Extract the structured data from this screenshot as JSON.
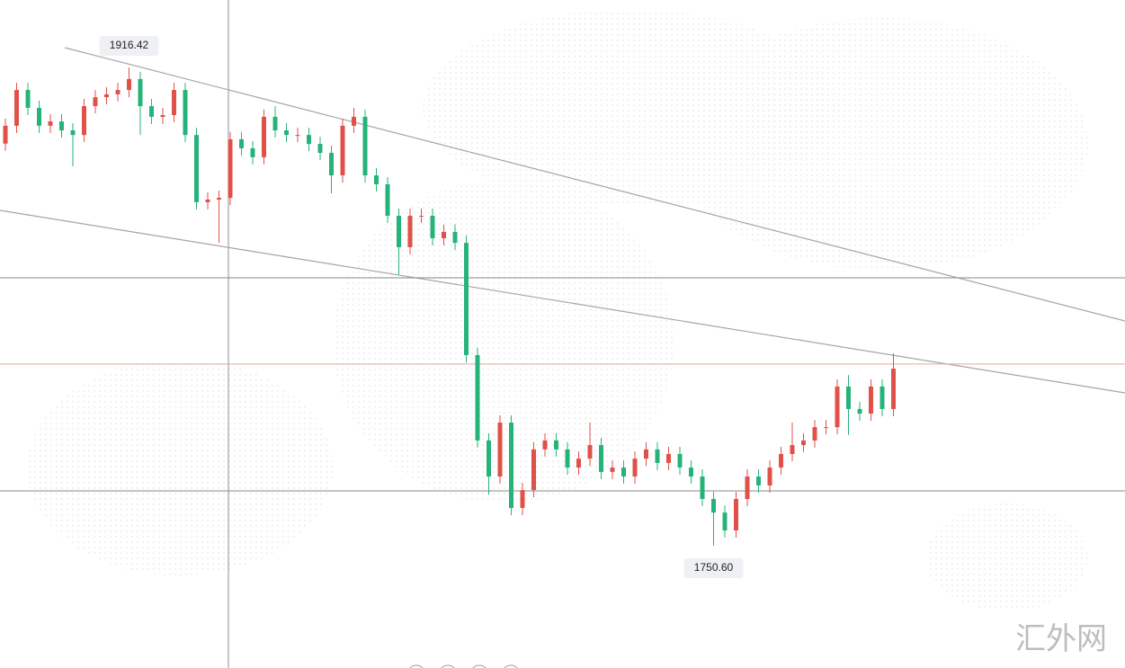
{
  "chart_data": {
    "type": "candlestick",
    "up_color": "#e0514a",
    "down_color": "#26b37a",
    "open": [
      1890.0,
      1896.2,
      1908.6,
      1902.4,
      1896.2,
      1897.7,
      1894.6,
      1893.0,
      1903.0,
      1906.1,
      1907.1,
      1908.6,
      1912.4,
      1903.0,
      1899.3,
      1899.9,
      1908.6,
      1893.0,
      1869.7,
      1870.6,
      1871.2,
      1891.5,
      1888.4,
      1885.3,
      1899.3,
      1894.6,
      1893.0,
      1893.0,
      1889.9,
      1886.8,
      1879.0,
      1896.2,
      1899.3,
      1879.0,
      1875.9,
      1865.0,
      1854.1,
      1865.0,
      1865.0,
      1857.2,
      1859.4,
      1855.6,
      1816.7,
      1787.1,
      1774.6,
      1793.3,
      1763.7,
      1769.9,
      1784.0,
      1787.1,
      1784.0,
      1777.7,
      1780.8,
      1785.5,
      1776.2,
      1777.7,
      1774.6,
      1780.8,
      1784.0,
      1779.3,
      1782.4,
      1777.7,
      1774.6,
      1766.8,
      1762.1,
      1755.9,
      1766.8,
      1774.6,
      1771.5,
      1777.7,
      1782.4,
      1785.5,
      1787.1,
      1791.7,
      1791.7,
      1805.8,
      1798.0,
      1796.4,
      1805.8,
      1798.0
    ],
    "high": [
      1898.7,
      1911.1,
      1911.1,
      1904.9,
      1900.2,
      1900.2,
      1897.1,
      1905.5,
      1908.6,
      1909.6,
      1911.1,
      1916.42,
      1914.9,
      1905.5,
      1902.4,
      1911.1,
      1911.1,
      1895.5,
      1873.1,
      1873.7,
      1894.0,
      1894.0,
      1890.9,
      1901.8,
      1903.0,
      1897.1,
      1895.5,
      1895.5,
      1892.4,
      1889.3,
      1898.7,
      1902.4,
      1901.8,
      1881.5,
      1878.4,
      1867.5,
      1867.5,
      1867.5,
      1867.5,
      1861.9,
      1862.0,
      1858.1,
      1819.2,
      1789.6,
      1795.8,
      1795.8,
      1772.4,
      1786.5,
      1789.6,
      1789.6,
      1786.5,
      1783.3,
      1793.3,
      1788.0,
      1780.2,
      1780.2,
      1783.3,
      1786.5,
      1786.5,
      1784.9,
      1784.9,
      1780.2,
      1777.1,
      1769.3,
      1764.6,
      1769.3,
      1777.1,
      1777.1,
      1780.2,
      1784.9,
      1793.3,
      1789.6,
      1794.2,
      1794.2,
      1808.3,
      1809.8,
      1800.5,
      1808.3,
      1808.3,
      1817.3
    ],
    "low": [
      1887.5,
      1893.7,
      1899.9,
      1893.7,
      1893.7,
      1892.1,
      1882.1,
      1890.5,
      1900.5,
      1903.6,
      1904.6,
      1906.1,
      1893.0,
      1896.8,
      1896.8,
      1897.4,
      1890.5,
      1867.2,
      1867.2,
      1855.6,
      1868.7,
      1885.9,
      1882.8,
      1882.8,
      1892.1,
      1890.5,
      1890.5,
      1887.4,
      1884.3,
      1872.8,
      1876.5,
      1893.7,
      1876.5,
      1873.4,
      1862.5,
      1844.7,
      1851.6,
      1862.5,
      1854.7,
      1854.7,
      1853.1,
      1814.2,
      1784.6,
      1768.3,
      1772.1,
      1761.2,
      1761.2,
      1767.4,
      1781.5,
      1781.5,
      1775.2,
      1775.2,
      1778.3,
      1773.7,
      1773.7,
      1772.1,
      1772.1,
      1778.3,
      1776.8,
      1776.8,
      1775.2,
      1772.1,
      1764.3,
      1750.6,
      1753.4,
      1753.4,
      1764.3,
      1769.0,
      1769.0,
      1775.2,
      1779.9,
      1783.0,
      1784.6,
      1789.2,
      1789.2,
      1789.0,
      1793.9,
      1793.9,
      1795.5,
      1795.5
    ],
    "close": [
      1896.2,
      1908.6,
      1902.4,
      1896.2,
      1897.7,
      1894.6,
      1893.0,
      1903.0,
      1906.1,
      1907.1,
      1908.6,
      1912.4,
      1903.0,
      1899.3,
      1899.9,
      1908.6,
      1893.0,
      1869.7,
      1870.6,
      1871.2,
      1891.5,
      1888.4,
      1885.3,
      1899.3,
      1894.6,
      1893.0,
      1893.0,
      1889.9,
      1886.8,
      1879.0,
      1896.2,
      1899.3,
      1879.0,
      1875.9,
      1865.0,
      1854.1,
      1865.0,
      1865.0,
      1857.2,
      1859.4,
      1855.6,
      1816.7,
      1787.1,
      1774.6,
      1793.3,
      1763.7,
      1769.9,
      1784.0,
      1787.1,
      1784.0,
      1777.7,
      1780.8,
      1785.5,
      1776.2,
      1777.7,
      1774.6,
      1780.8,
      1784.0,
      1779.3,
      1782.4,
      1777.7,
      1774.6,
      1766.8,
      1762.1,
      1755.9,
      1766.8,
      1774.6,
      1771.5,
      1777.7,
      1782.4,
      1785.5,
      1787.1,
      1791.7,
      1791.7,
      1805.8,
      1798.0,
      1796.4,
      1805.8,
      1798.0,
      1812.0
    ],
    "levels": [
      {
        "value": 1843.5,
        "color": "#8a8a8a"
      },
      {
        "value": 1813.6,
        "color": "#f2a0a0"
      },
      {
        "value": 1769.6,
        "color": "#8a8a8a"
      }
    ],
    "max_label": "1916.42",
    "min_label": "1750.60",
    "watermark": "汇外网"
  }
}
